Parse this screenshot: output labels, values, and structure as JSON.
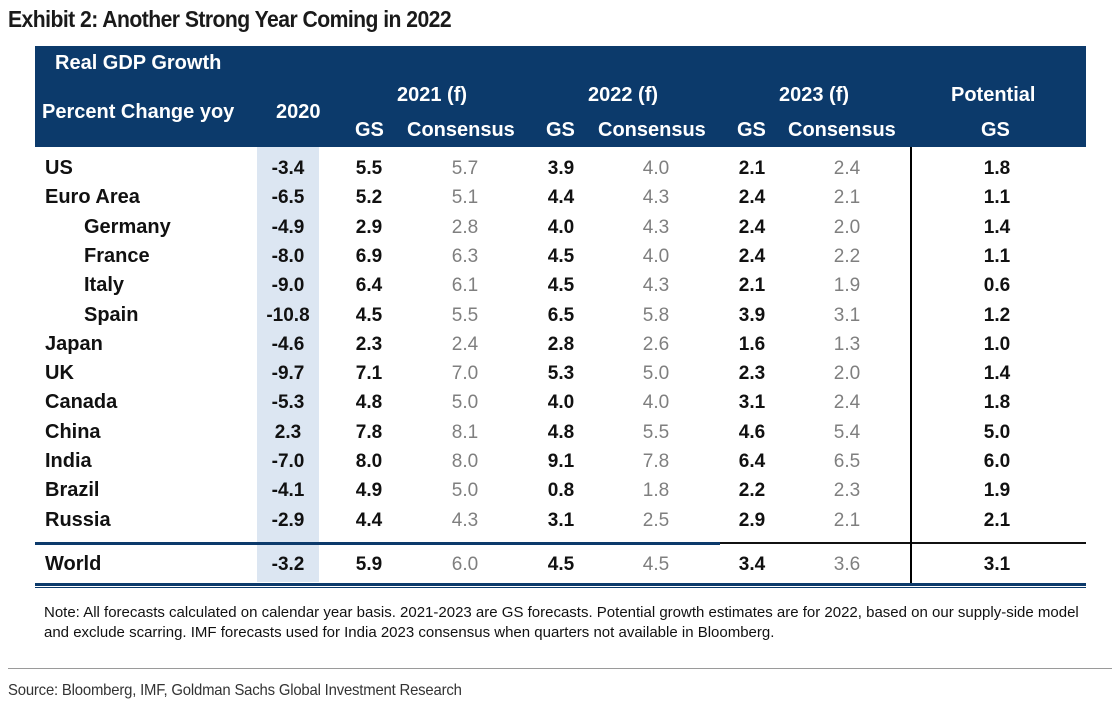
{
  "title": "Exhibit 2: Another Strong Year Coming in 2022",
  "header": {
    "block_title": "Real GDP Growth",
    "subtitle": "Percent Change yoy",
    "col_2020": "2020",
    "group_2021": "2021 (f)",
    "group_2022": "2022 (f)",
    "group_2023": "2023 (f)",
    "potential_top": "Potential",
    "potential_bottom": "GS",
    "gs": "GS",
    "consensus": "Consensus"
  },
  "chart_data": {
    "type": "table",
    "title": "Real GDP Growth",
    "columns": [
      "2020",
      "2021 (f) GS",
      "2021 (f) Consensus",
      "2022 (f) GS",
      "2022 (f) Consensus",
      "2023 (f) GS",
      "2023 (f) Consensus",
      "Potential GS"
    ],
    "rows": [
      {
        "label": "US",
        "indent": false,
        "values": [
          "-3.4",
          "5.5",
          "5.7",
          "3.9",
          "4.0",
          "2.1",
          "2.4",
          "1.8"
        ]
      },
      {
        "label": "Euro Area",
        "indent": false,
        "values": [
          "-6.5",
          "5.2",
          "5.1",
          "4.4",
          "4.3",
          "2.4",
          "2.1",
          "1.1"
        ]
      },
      {
        "label": "Germany",
        "indent": true,
        "values": [
          "-4.9",
          "2.9",
          "2.8",
          "4.0",
          "4.3",
          "2.4",
          "2.0",
          "1.4"
        ]
      },
      {
        "label": "France",
        "indent": true,
        "values": [
          "-8.0",
          "6.9",
          "6.3",
          "4.5",
          "4.0",
          "2.4",
          "2.2",
          "1.1"
        ]
      },
      {
        "label": "Italy",
        "indent": true,
        "values": [
          "-9.0",
          "6.4",
          "6.1",
          "4.5",
          "4.3",
          "2.1",
          "1.9",
          "0.6"
        ]
      },
      {
        "label": "Spain",
        "indent": true,
        "values": [
          "-10.8",
          "4.5",
          "5.5",
          "6.5",
          "5.8",
          "3.9",
          "3.1",
          "1.2"
        ]
      },
      {
        "label": "Japan",
        "indent": false,
        "values": [
          "-4.6",
          "2.3",
          "2.4",
          "2.8",
          "2.6",
          "1.6",
          "1.3",
          "1.0"
        ]
      },
      {
        "label": "UK",
        "indent": false,
        "values": [
          "-9.7",
          "7.1",
          "7.0",
          "5.3",
          "5.0",
          "2.3",
          "2.0",
          "1.4"
        ]
      },
      {
        "label": "Canada",
        "indent": false,
        "values": [
          "-5.3",
          "4.8",
          "5.0",
          "4.0",
          "4.0",
          "3.1",
          "2.4",
          "1.8"
        ]
      },
      {
        "label": "China",
        "indent": false,
        "values": [
          "2.3",
          "7.8",
          "8.1",
          "4.8",
          "5.5",
          "4.6",
          "5.4",
          "5.0"
        ]
      },
      {
        "label": "India",
        "indent": false,
        "values": [
          "-7.0",
          "8.0",
          "8.0",
          "9.1",
          "7.8",
          "6.4",
          "6.5",
          "6.0"
        ]
      },
      {
        "label": "Brazil",
        "indent": false,
        "values": [
          "-4.1",
          "4.9",
          "5.0",
          "0.8",
          "1.8",
          "2.2",
          "2.3",
          "1.9"
        ]
      },
      {
        "label": "Russia",
        "indent": false,
        "values": [
          "-2.9",
          "4.4",
          "4.3",
          "3.1",
          "2.5",
          "2.9",
          "2.1",
          "2.1"
        ]
      }
    ],
    "total_row": {
      "label": "World",
      "values": [
        "-3.2",
        "5.9",
        "6.0",
        "4.5",
        "4.5",
        "3.4",
        "3.6",
        "3.1"
      ]
    }
  },
  "note": "Note: All forecasts calculated on calendar year basis. 2021-2023 are GS forecasts. Potential growth estimates are for 2022, based on our supply-side model and exclude scarring. IMF forecasts used for India 2023 consensus when quarters not available in Bloomberg.",
  "source": "Source: Bloomberg, IMF, Goldman Sachs Global Investment Research",
  "colors": {
    "header_bg": "#0c3a6b",
    "shade_2020": "#dce6f2",
    "consensus_text": "#7f7f7f",
    "gs_text": "#111111"
  }
}
